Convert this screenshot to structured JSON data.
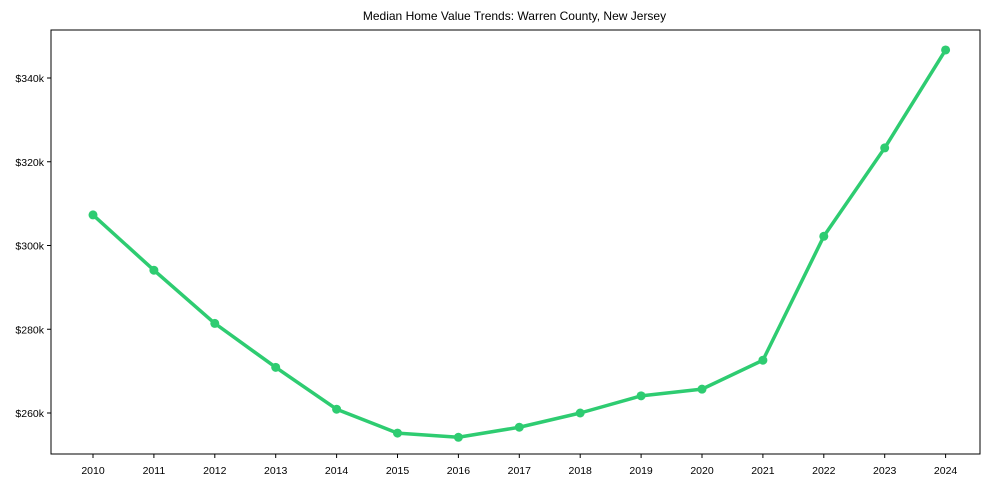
{
  "chart_data": {
    "type": "line",
    "title": "Median Home Value Trends: Warren County, New Jersey",
    "xlabel": "",
    "ylabel": "",
    "x": [
      2010,
      2011,
      2012,
      2013,
      2014,
      2015,
      2016,
      2017,
      2018,
      2019,
      2020,
      2021,
      2022,
      2023,
      2024
    ],
    "series": [
      {
        "name": "Median Home Value",
        "color": "#2ecc71",
        "values": [
          307300,
          294100,
          281400,
          270900,
          260900,
          255200,
          254200,
          256600,
          260000,
          264100,
          265700,
          272600,
          302200,
          323300,
          346700
        ]
      }
    ],
    "yticks": [
      260000,
      280000,
      300000,
      320000,
      340000
    ],
    "ytick_labels": [
      "$260k",
      "$280k",
      "$300k",
      "$320k",
      "$340k"
    ],
    "xtick_labels": [
      "2010",
      "2011",
      "2012",
      "2013",
      "2014",
      "2015",
      "2016",
      "2017",
      "2018",
      "2019",
      "2020",
      "2021",
      "2022",
      "2023",
      "2024"
    ],
    "ylim": [
      250000,
      351000
    ],
    "grid": false,
    "legend": null
  }
}
